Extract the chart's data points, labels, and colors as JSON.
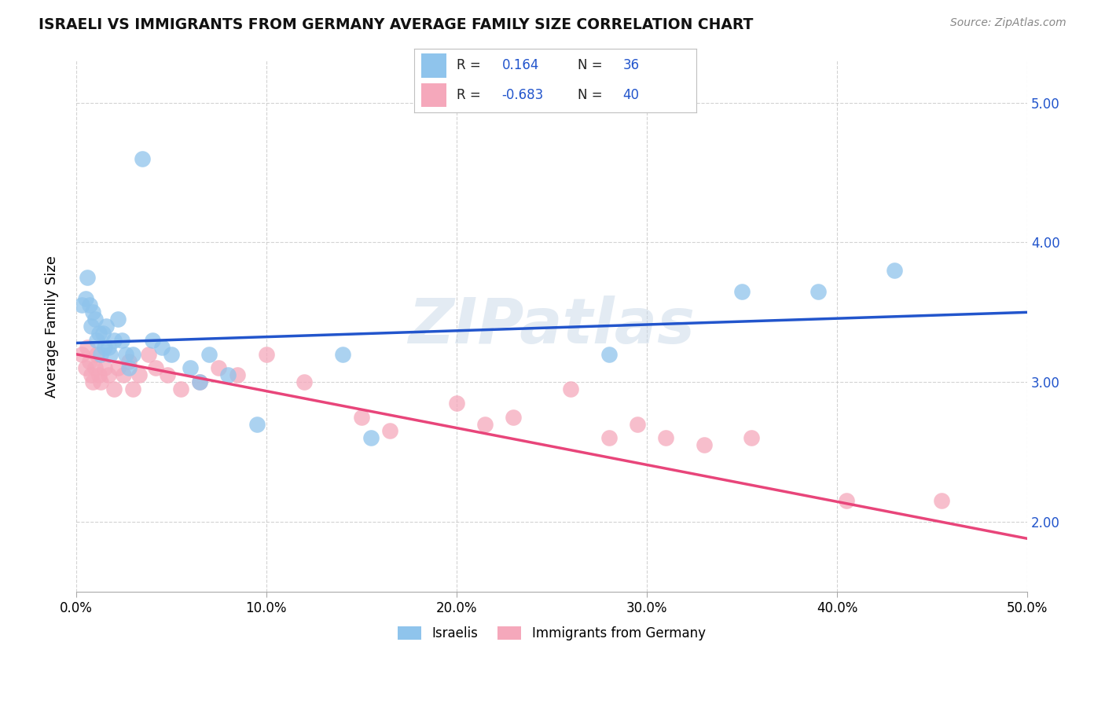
{
  "title": "ISRAELI VS IMMIGRANTS FROM GERMANY AVERAGE FAMILY SIZE CORRELATION CHART",
  "source": "Source: ZipAtlas.com",
  "ylabel": "Average Family Size",
  "watermark": "ZIPatlas",
  "xmin": 0.0,
  "xmax": 0.5,
  "ymin": 1.5,
  "ymax": 5.3,
  "yticks": [
    2.0,
    3.0,
    4.0,
    5.0
  ],
  "xticks": [
    0.0,
    0.1,
    0.2,
    0.3,
    0.4,
    0.5
  ],
  "xticklabels": [
    "0.0%",
    "10.0%",
    "20.0%",
    "30.0%",
    "40.0%",
    "50.0%"
  ],
  "israelis_color": "#8FC4EC",
  "immigrants_color": "#F5A8BB",
  "line_blue": "#2255CC",
  "line_pink": "#E8457A",
  "blue_line_x0": 0.0,
  "blue_line_y0": 3.28,
  "blue_line_x1": 0.5,
  "blue_line_y1": 3.5,
  "pink_line_x0": 0.0,
  "pink_line_y0": 3.2,
  "pink_line_x1": 0.5,
  "pink_line_y1": 1.88,
  "israelis_x": [
    0.003,
    0.005,
    0.006,
    0.007,
    0.008,
    0.009,
    0.01,
    0.011,
    0.012,
    0.013,
    0.014,
    0.015,
    0.016,
    0.017,
    0.018,
    0.02,
    0.022,
    0.024,
    0.026,
    0.028,
    0.03,
    0.035,
    0.04,
    0.045,
    0.05,
    0.06,
    0.065,
    0.07,
    0.08,
    0.095,
    0.14,
    0.155,
    0.28,
    0.35,
    0.39,
    0.43
  ],
  "israelis_y": [
    3.55,
    3.6,
    3.75,
    3.55,
    3.4,
    3.5,
    3.45,
    3.3,
    3.35,
    3.2,
    3.35,
    3.25,
    3.4,
    3.25,
    3.2,
    3.3,
    3.45,
    3.3,
    3.2,
    3.1,
    3.2,
    4.6,
    3.3,
    3.25,
    3.2,
    3.1,
    3.0,
    3.2,
    3.05,
    2.7,
    3.2,
    2.6,
    3.2,
    3.65,
    3.65,
    3.8
  ],
  "immigrants_x": [
    0.003,
    0.005,
    0.006,
    0.007,
    0.008,
    0.009,
    0.01,
    0.011,
    0.012,
    0.013,
    0.015,
    0.017,
    0.02,
    0.022,
    0.025,
    0.028,
    0.03,
    0.033,
    0.038,
    0.042,
    0.048,
    0.055,
    0.065,
    0.075,
    0.085,
    0.1,
    0.12,
    0.15,
    0.165,
    0.2,
    0.215,
    0.23,
    0.26,
    0.28,
    0.295,
    0.31,
    0.33,
    0.355,
    0.405,
    0.455
  ],
  "immigrants_y": [
    3.2,
    3.1,
    3.25,
    3.15,
    3.05,
    3.0,
    3.1,
    3.2,
    3.05,
    3.0,
    3.1,
    3.05,
    2.95,
    3.1,
    3.05,
    3.15,
    2.95,
    3.05,
    3.2,
    3.1,
    3.05,
    2.95,
    3.0,
    3.1,
    3.05,
    3.2,
    3.0,
    2.75,
    2.65,
    2.85,
    2.7,
    2.75,
    2.95,
    2.6,
    2.7,
    2.6,
    2.55,
    2.6,
    2.15,
    2.15
  ]
}
